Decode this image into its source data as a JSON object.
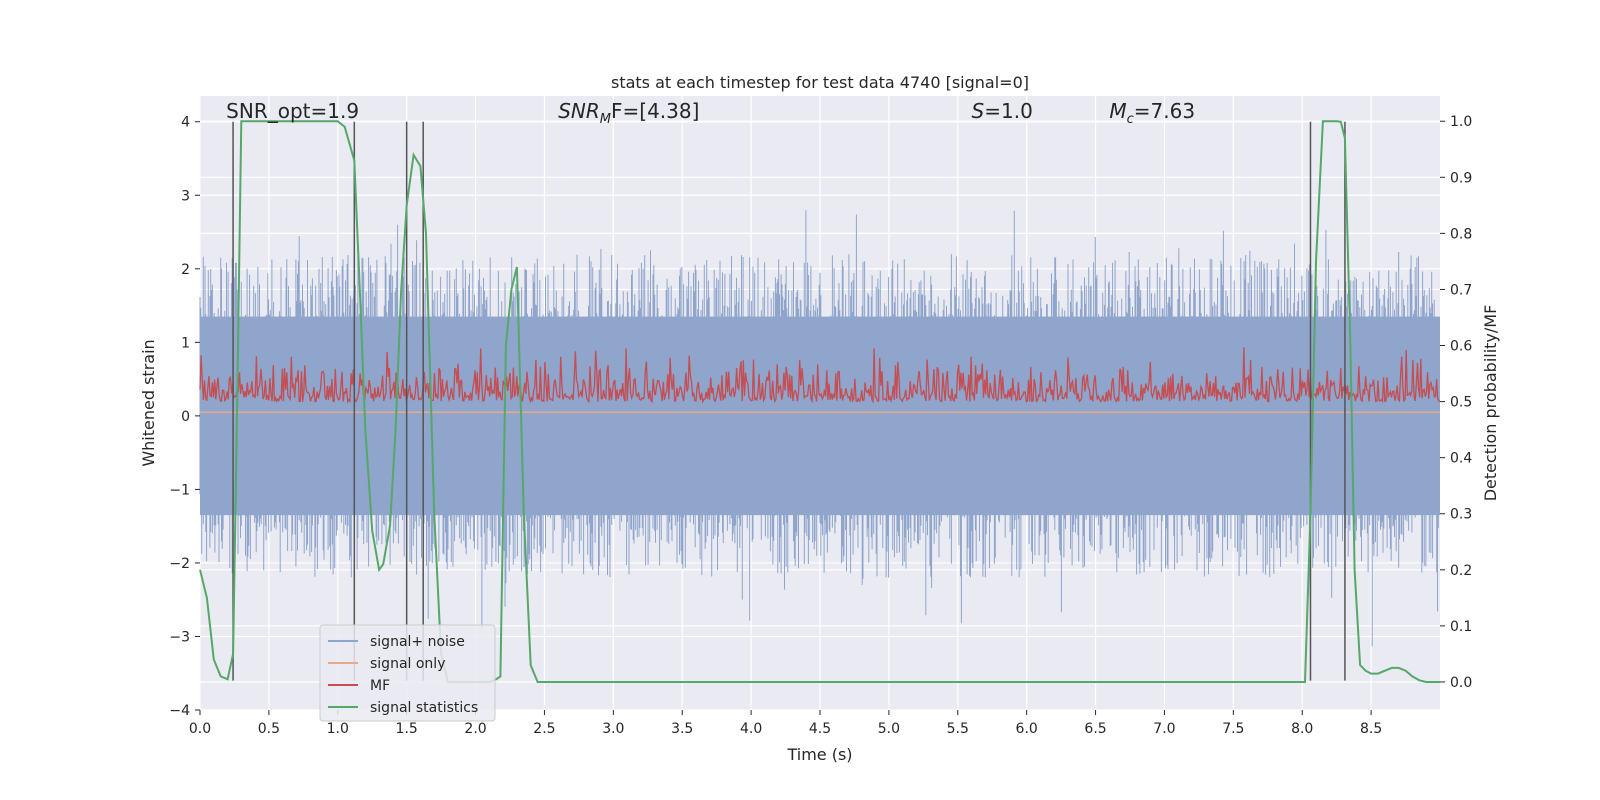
{
  "chart_data": {
    "type": "line",
    "title": "stats at each timestep for test data 4740 [signal=0]",
    "xlabel": "Time (s)",
    "ylabel": "Whitened strain",
    "ylabel_right": "Detection probability/MF",
    "xlim": [
      0,
      9
    ],
    "ylim": [
      -4,
      4.35
    ],
    "ylim_right": [
      -0.05,
      1.045
    ],
    "x_ticks": [
      "0.0",
      "0.5",
      "1.0",
      "1.5",
      "2.0",
      "2.5",
      "3.0",
      "3.5",
      "4.0",
      "4.5",
      "5.0",
      "5.5",
      "6.0",
      "6.5",
      "7.0",
      "7.5",
      "8.0",
      "8.5"
    ],
    "x_tick_values": [
      0,
      0.5,
      1,
      1.5,
      2,
      2.5,
      3,
      3.5,
      4,
      4.5,
      5,
      5.5,
      6,
      6.5,
      7,
      7.5,
      8,
      8.5
    ],
    "y_ticks": [
      "4",
      "3",
      "2",
      "1",
      "0",
      "−1",
      "−2",
      "−3",
      "−4"
    ],
    "y_tick_values": [
      4,
      3,
      2,
      1,
      0,
      -1,
      -2,
      -3,
      -4
    ],
    "y_right_ticks": [
      "1.0",
      "0.9",
      "0.8",
      "0.7",
      "0.6",
      "0.5",
      "0.4",
      "0.3",
      "0.2",
      "0.1",
      "0.0"
    ],
    "y_right_tick_values": [
      1.0,
      0.9,
      0.8,
      0.7,
      0.6,
      0.5,
      0.4,
      0.3,
      0.2,
      0.1,
      0.0
    ],
    "grid": true,
    "legend_placement": "lower-left",
    "annotations": [
      {
        "prefix": "SNR_opt=1.9",
        "sym": "",
        "sub": "",
        "suffix": "",
        "x": 0.19,
        "y": 4.05
      },
      {
        "prefix": "",
        "sym": "SNR",
        "sub": "M",
        "suffix": "F=[4.38]",
        "x": 2.6,
        "y": 4.05
      },
      {
        "prefix": "",
        "sym": "S",
        "sub": "",
        "suffix": "=1.0",
        "x": 5.6,
        "y": 4.05
      },
      {
        "prefix": "",
        "sym": "M",
        "sub": "c",
        "suffix": "=7.63",
        "x": 6.6,
        "y": 4.05
      }
    ],
    "vertical_lines": [
      0.24,
      1.12,
      1.5,
      1.62,
      8.06,
      8.31
    ],
    "vertical_line_range": [
      -3.6,
      4.0
    ],
    "series": [
      {
        "name": "signal+ noise",
        "color": "#8fa5cc",
        "axis": "left",
        "kind": "noise",
        "band": [
          -1.35,
          1.35
        ],
        "extreme_range": [
          -3.6,
          4.0
        ]
      },
      {
        "name": "signal only",
        "color": "#e8a88a",
        "axis": "left",
        "kind": "flat",
        "value": 0.05
      },
      {
        "name": "MF",
        "color": "#c44e52",
        "axis": "right",
        "kind": "mf",
        "band": [
          0.5,
          0.55
        ],
        "peak": 0.6
      },
      {
        "name": "signal statistics",
        "color": "#55a868",
        "axis": "right",
        "kind": "line",
        "x": [
          0,
          0.05,
          0.1,
          0.15,
          0.2,
          0.24,
          0.27,
          0.3,
          0.35,
          0.4,
          0.5,
          0.6,
          0.7,
          0.8,
          0.9,
          1.0,
          1.05,
          1.12,
          1.16,
          1.2,
          1.25,
          1.3,
          1.33,
          1.38,
          1.42,
          1.46,
          1.5,
          1.55,
          1.6,
          1.64,
          1.67,
          1.7,
          1.75,
          1.8,
          1.9,
          2.0,
          2.1,
          2.15,
          2.18,
          2.22,
          2.26,
          2.3,
          2.35,
          2.4,
          2.45,
          2.5,
          3.0,
          4.0,
          5.0,
          6.0,
          7.0,
          7.5,
          7.95,
          8.0,
          8.02,
          8.06,
          8.1,
          8.15,
          8.2,
          8.25,
          8.28,
          8.31,
          8.35,
          8.38,
          8.42,
          8.46,
          8.5,
          8.55,
          8.6,
          8.65,
          8.7,
          8.75,
          8.8,
          8.85,
          8.9,
          8.95,
          9.0
        ],
        "y": [
          0.2,
          0.15,
          0.04,
          0.01,
          0.005,
          0.05,
          0.5,
          1.0,
          1.0,
          1.0,
          1.0,
          1.0,
          1.0,
          1.0,
          1.0,
          1.0,
          0.99,
          0.93,
          0.7,
          0.45,
          0.27,
          0.2,
          0.21,
          0.28,
          0.45,
          0.7,
          0.85,
          0.94,
          0.92,
          0.8,
          0.55,
          0.3,
          0.05,
          0.0,
          0.0,
          0.0,
          0.0,
          0.005,
          0.01,
          0.6,
          0.7,
          0.74,
          0.3,
          0.03,
          0.0,
          0.0,
          0.0,
          0.0,
          0.0,
          0.0,
          0.0,
          0.0,
          0.0,
          0.0,
          0.0,
          0.3,
          0.75,
          1.0,
          1.0,
          1.0,
          0.999,
          0.97,
          0.6,
          0.2,
          0.03,
          0.02,
          0.015,
          0.015,
          0.02,
          0.025,
          0.025,
          0.02,
          0.01,
          0.003,
          0.0,
          0.0,
          0.0
        ]
      }
    ]
  }
}
